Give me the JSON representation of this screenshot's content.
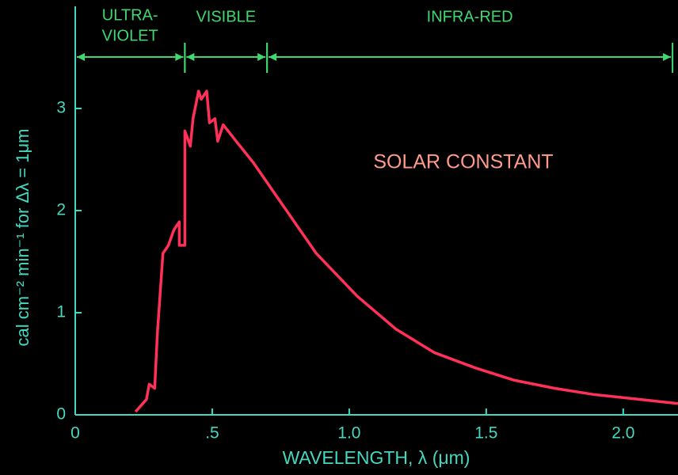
{
  "chart_data": {
    "type": "line",
    "annotation": "SOLAR CONSTANT",
    "x_label": "WAVELENGTH, λ (μm)",
    "y_label": "cal cm⁻² min⁻¹ for Δλ = 1μm",
    "xlim": [
      0,
      2.2
    ],
    "ylim": [
      0,
      4
    ],
    "xticks": [
      0,
      {
        "value": 0.5,
        "label": ".5"
      },
      {
        "value": 1,
        "label": "1.0"
      },
      {
        "value": 1.5,
        "label": "1.5"
      },
      {
        "value": 2,
        "label": "2.0"
      }
    ],
    "yticks": [
      0,
      1,
      2,
      3
    ],
    "regions": [
      {
        "label": [
          "ULTRA-",
          "VIOLET"
        ],
        "start": 0,
        "end": 0.4
      },
      {
        "label": [
          "VISIBLE"
        ],
        "start": 0.4,
        "end": 0.7
      },
      {
        "label": [
          "INFRA-RED"
        ],
        "start": 0.7,
        "end": 2.18
      }
    ],
    "series": [
      {
        "color": "#ff3158",
        "x": [
          0.22,
          0.26,
          0.27,
          0.29,
          0.3,
          0.32,
          0.34,
          0.36,
          0.38,
          0.38,
          0.4,
          0.4,
          0.42,
          0.43,
          0.45,
          0.46,
          0.48,
          0.49,
          0.51,
          0.52,
          0.54,
          0.59,
          0.65,
          0.74,
          0.88,
          1.03,
          1.17,
          1.31,
          1.46,
          1.6,
          1.75,
          1.89,
          2.03,
          2.2
        ],
        "values": [
          0.03,
          0.15,
          0.3,
          0.26,
          0.81,
          1.58,
          1.66,
          1.81,
          1.89,
          1.66,
          1.66,
          2.78,
          2.63,
          2.9,
          3.17,
          3.09,
          3.17,
          2.86,
          2.9,
          2.68,
          2.84,
          2.67,
          2.47,
          2.12,
          1.58,
          1.16,
          0.84,
          0.61,
          0.46,
          0.34,
          0.26,
          0.2,
          0.16,
          0.11
        ]
      }
    ]
  }
}
